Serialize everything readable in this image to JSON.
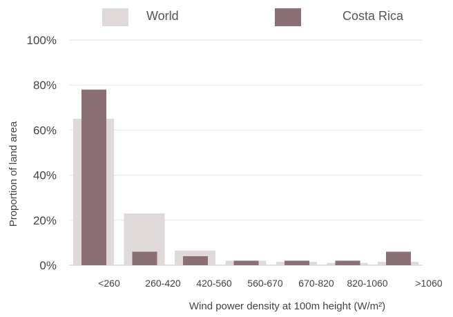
{
  "chart_data": {
    "type": "bar",
    "title": "",
    "xlabel": "Wind power density at 100m height (W/m²)",
    "ylabel": "Proportion of land area",
    "categories": [
      "<260",
      "260-420",
      "420-560",
      "560-670",
      "670-820",
      "820-1060",
      ">1060"
    ],
    "series": [
      {
        "name": "World",
        "color": "#e0d9da",
        "values": [
          65,
          23,
          6.5,
          2,
          1.5,
          1,
          1.5
        ]
      },
      {
        "name": "Costa Rica",
        "color": "#8a6f74",
        "values": [
          78,
          6,
          4,
          2,
          2,
          2,
          6
        ]
      }
    ],
    "ylim": [
      0,
      100
    ],
    "yticks": [
      "0%",
      "20%",
      "40%",
      "60%",
      "80%",
      "100%"
    ],
    "grid": true,
    "legend_position": "top"
  }
}
